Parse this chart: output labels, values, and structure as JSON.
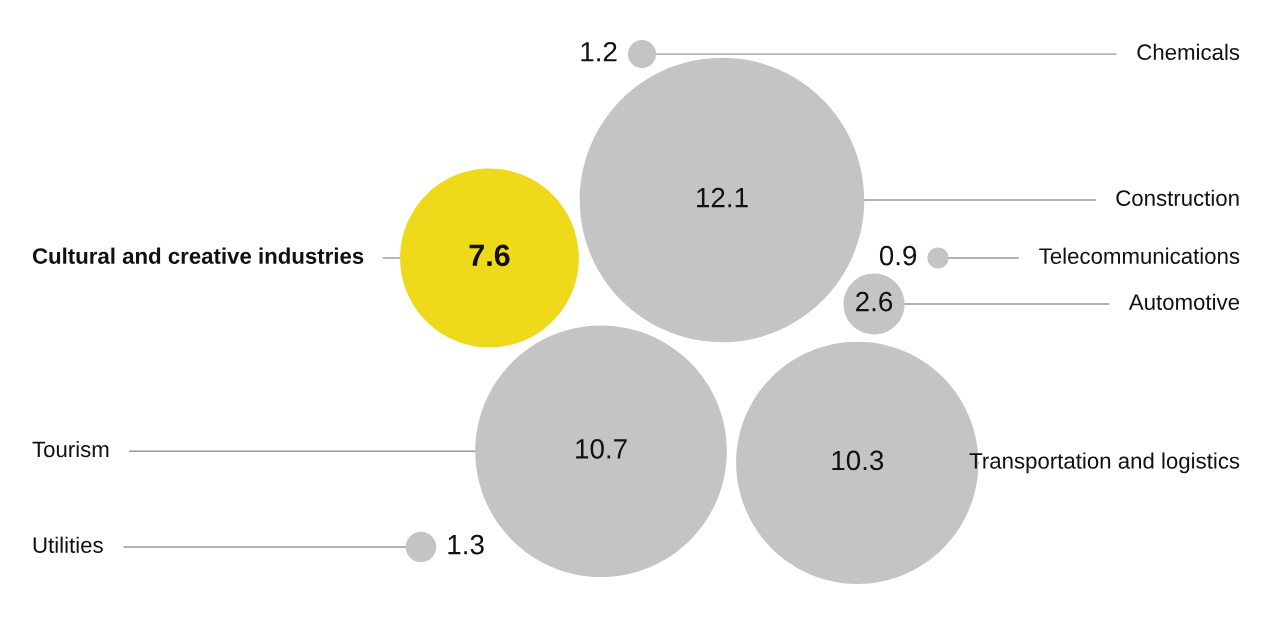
{
  "chart_data": {
    "type": "other",
    "categories": [
      "Chemicals",
      "Construction",
      "Cultural and creative industries",
      "Telecommunications",
      "Automotive",
      "Tourism",
      "Transportation and logistics",
      "Utilities"
    ],
    "values": [
      1.2,
      12.1,
      7.6,
      0.9,
      2.6,
      10.7,
      10.3,
      1.3
    ],
    "colors": [
      "#c4c4c4",
      "#c4c4c4",
      "#eed91a",
      "#c4c4c4",
      "#c4c4c4",
      "#c4c4c4",
      "#c4c4c4",
      "#c4c4c4"
    ],
    "data_labels": true
  }
}
